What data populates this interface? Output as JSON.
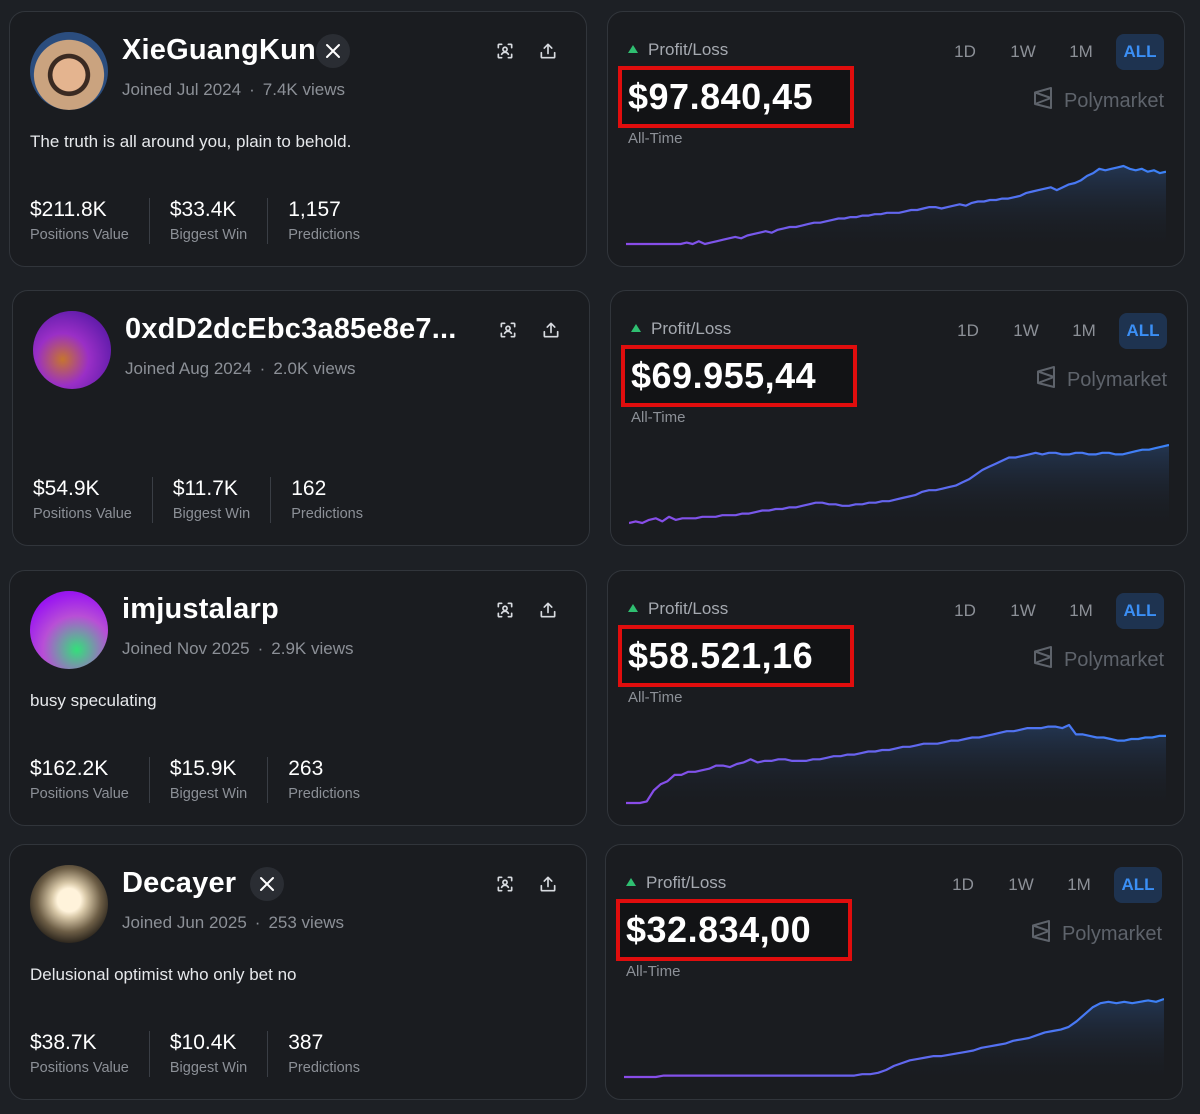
{
  "colors": {
    "background": "#1d2025",
    "card": "#1a1c20",
    "accent": "#3b8ff5",
    "positive": "#2fbf71",
    "highlight_box": "#e00d0d",
    "line_start": "#8a4be8",
    "line_end": "#3b82f6"
  },
  "labels": {
    "profit_loss": "Profit/Loss",
    "all_time": "All-Time",
    "brand": "Polymarket",
    "positions_value": "Positions Value",
    "biggest_win": "Biggest Win",
    "predictions": "Predictions",
    "ranges": [
      "1D",
      "1W",
      "1M",
      "ALL"
    ],
    "meta_separator": "·"
  },
  "icons": {
    "x_badge": "x-logo-icon",
    "scan": "scan-icon",
    "share": "share-icon",
    "trend": "triangle-up-icon",
    "brand": "polymarket-logo-icon"
  },
  "traders": [
    {
      "name": "XieGuangKun",
      "has_x_badge": true,
      "joined": "Joined Jul 2024",
      "views": "7.4K views",
      "bio": "The truth is all around you, plain to behold.",
      "positions_value": "$211.8K",
      "biggest_win": "$33.4K",
      "predictions": "1,157",
      "pnl": "$97.840,45",
      "active_range": "ALL",
      "pnl_series": [
        0,
        0,
        0,
        0,
        0,
        0,
        0,
        0,
        0,
        0,
        1,
        0,
        2,
        0,
        1,
        2,
        3,
        4,
        5,
        4,
        6,
        7,
        8,
        9,
        8,
        10,
        11,
        12,
        12,
        13,
        14,
        15,
        15,
        16,
        17,
        18,
        18,
        19,
        19,
        20,
        20,
        21,
        21,
        22,
        22,
        22,
        23,
        24,
        24,
        25,
        26,
        26,
        25,
        26,
        27,
        28,
        27,
        29,
        30,
        30,
        31,
        31,
        32,
        32,
        33,
        34,
        36,
        37,
        38,
        39,
        40,
        38,
        40,
        42,
        43,
        45,
        48,
        50,
        53,
        52,
        53,
        54,
        55,
        53,
        52,
        53,
        51,
        52,
        50,
        51
      ]
    },
    {
      "name": "0xdD2dcEbc3a85e8e7...",
      "has_x_badge": false,
      "joined": "Joined Aug 2024",
      "views": "2.0K views",
      "bio": "",
      "positions_value": "$54.9K",
      "biggest_win": "$11.7K",
      "predictions": "162",
      "pnl": "$69.955,44",
      "active_range": "ALL",
      "pnl_series": [
        0,
        1,
        0,
        2,
        3,
        1,
        4,
        2,
        3,
        3,
        3,
        4,
        4,
        4,
        5,
        5,
        5,
        6,
        6,
        7,
        8,
        8,
        9,
        9,
        10,
        10,
        11,
        12,
        13,
        13,
        12,
        12,
        11,
        11,
        12,
        12,
        13,
        13,
        14,
        14,
        15,
        16,
        17,
        18,
        20,
        21,
        21,
        22,
        23,
        24,
        26,
        28,
        31,
        34,
        36,
        38,
        40,
        42,
        42,
        43,
        44,
        45,
        44,
        45,
        45,
        44,
        44,
        45,
        45,
        44,
        44,
        45,
        45,
        44,
        44,
        45,
        46,
        47,
        47,
        48,
        49,
        50
      ]
    },
    {
      "name": "imjustalarp",
      "has_x_badge": false,
      "joined": "Joined Nov 2025",
      "views": "2.9K views",
      "bio": "busy speculating",
      "positions_value": "$162.2K",
      "biggest_win": "$15.9K",
      "predictions": "263",
      "pnl": "$58.521,16",
      "active_range": "ALL",
      "pnl_series": [
        0,
        0,
        0,
        1,
        8,
        12,
        14,
        18,
        18,
        20,
        20,
        21,
        22,
        24,
        24,
        23,
        25,
        26,
        28,
        26,
        27,
        27,
        28,
        28,
        27,
        27,
        27,
        28,
        28,
        29,
        30,
        30,
        31,
        31,
        32,
        33,
        33,
        34,
        34,
        35,
        36,
        36,
        37,
        38,
        38,
        38,
        39,
        40,
        40,
        41,
        42,
        42,
        43,
        44,
        45,
        46,
        46,
        47,
        48,
        48,
        48,
        49,
        49,
        48,
        50,
        44,
        44,
        43,
        42,
        42,
        41,
        40,
        40,
        41,
        41,
        42,
        42,
        43,
        43
      ]
    },
    {
      "name": "Decayer",
      "has_x_badge": true,
      "joined": "Joined Jun 2025",
      "views": "253 views",
      "bio": "Delusional optimist who only bet no",
      "positions_value": "$38.7K",
      "biggest_win": "$10.4K",
      "predictions": "387",
      "pnl": "$32.834,00",
      "active_range": "ALL",
      "pnl_series": [
        0,
        0,
        0,
        0,
        0,
        1,
        1,
        1,
        1,
        1,
        1,
        1,
        1,
        1,
        1,
        1,
        1,
        1,
        1,
        1,
        1,
        1,
        1,
        1,
        1,
        1,
        1,
        1,
        1,
        1,
        2,
        2,
        3,
        5,
        8,
        10,
        12,
        13,
        14,
        15,
        15,
        16,
        17,
        18,
        19,
        21,
        22,
        23,
        24,
        26,
        27,
        28,
        30,
        32,
        33,
        34,
        36,
        40,
        45,
        50,
        53,
        54,
        53,
        54,
        53,
        54,
        55,
        54,
        56
      ]
    }
  ]
}
